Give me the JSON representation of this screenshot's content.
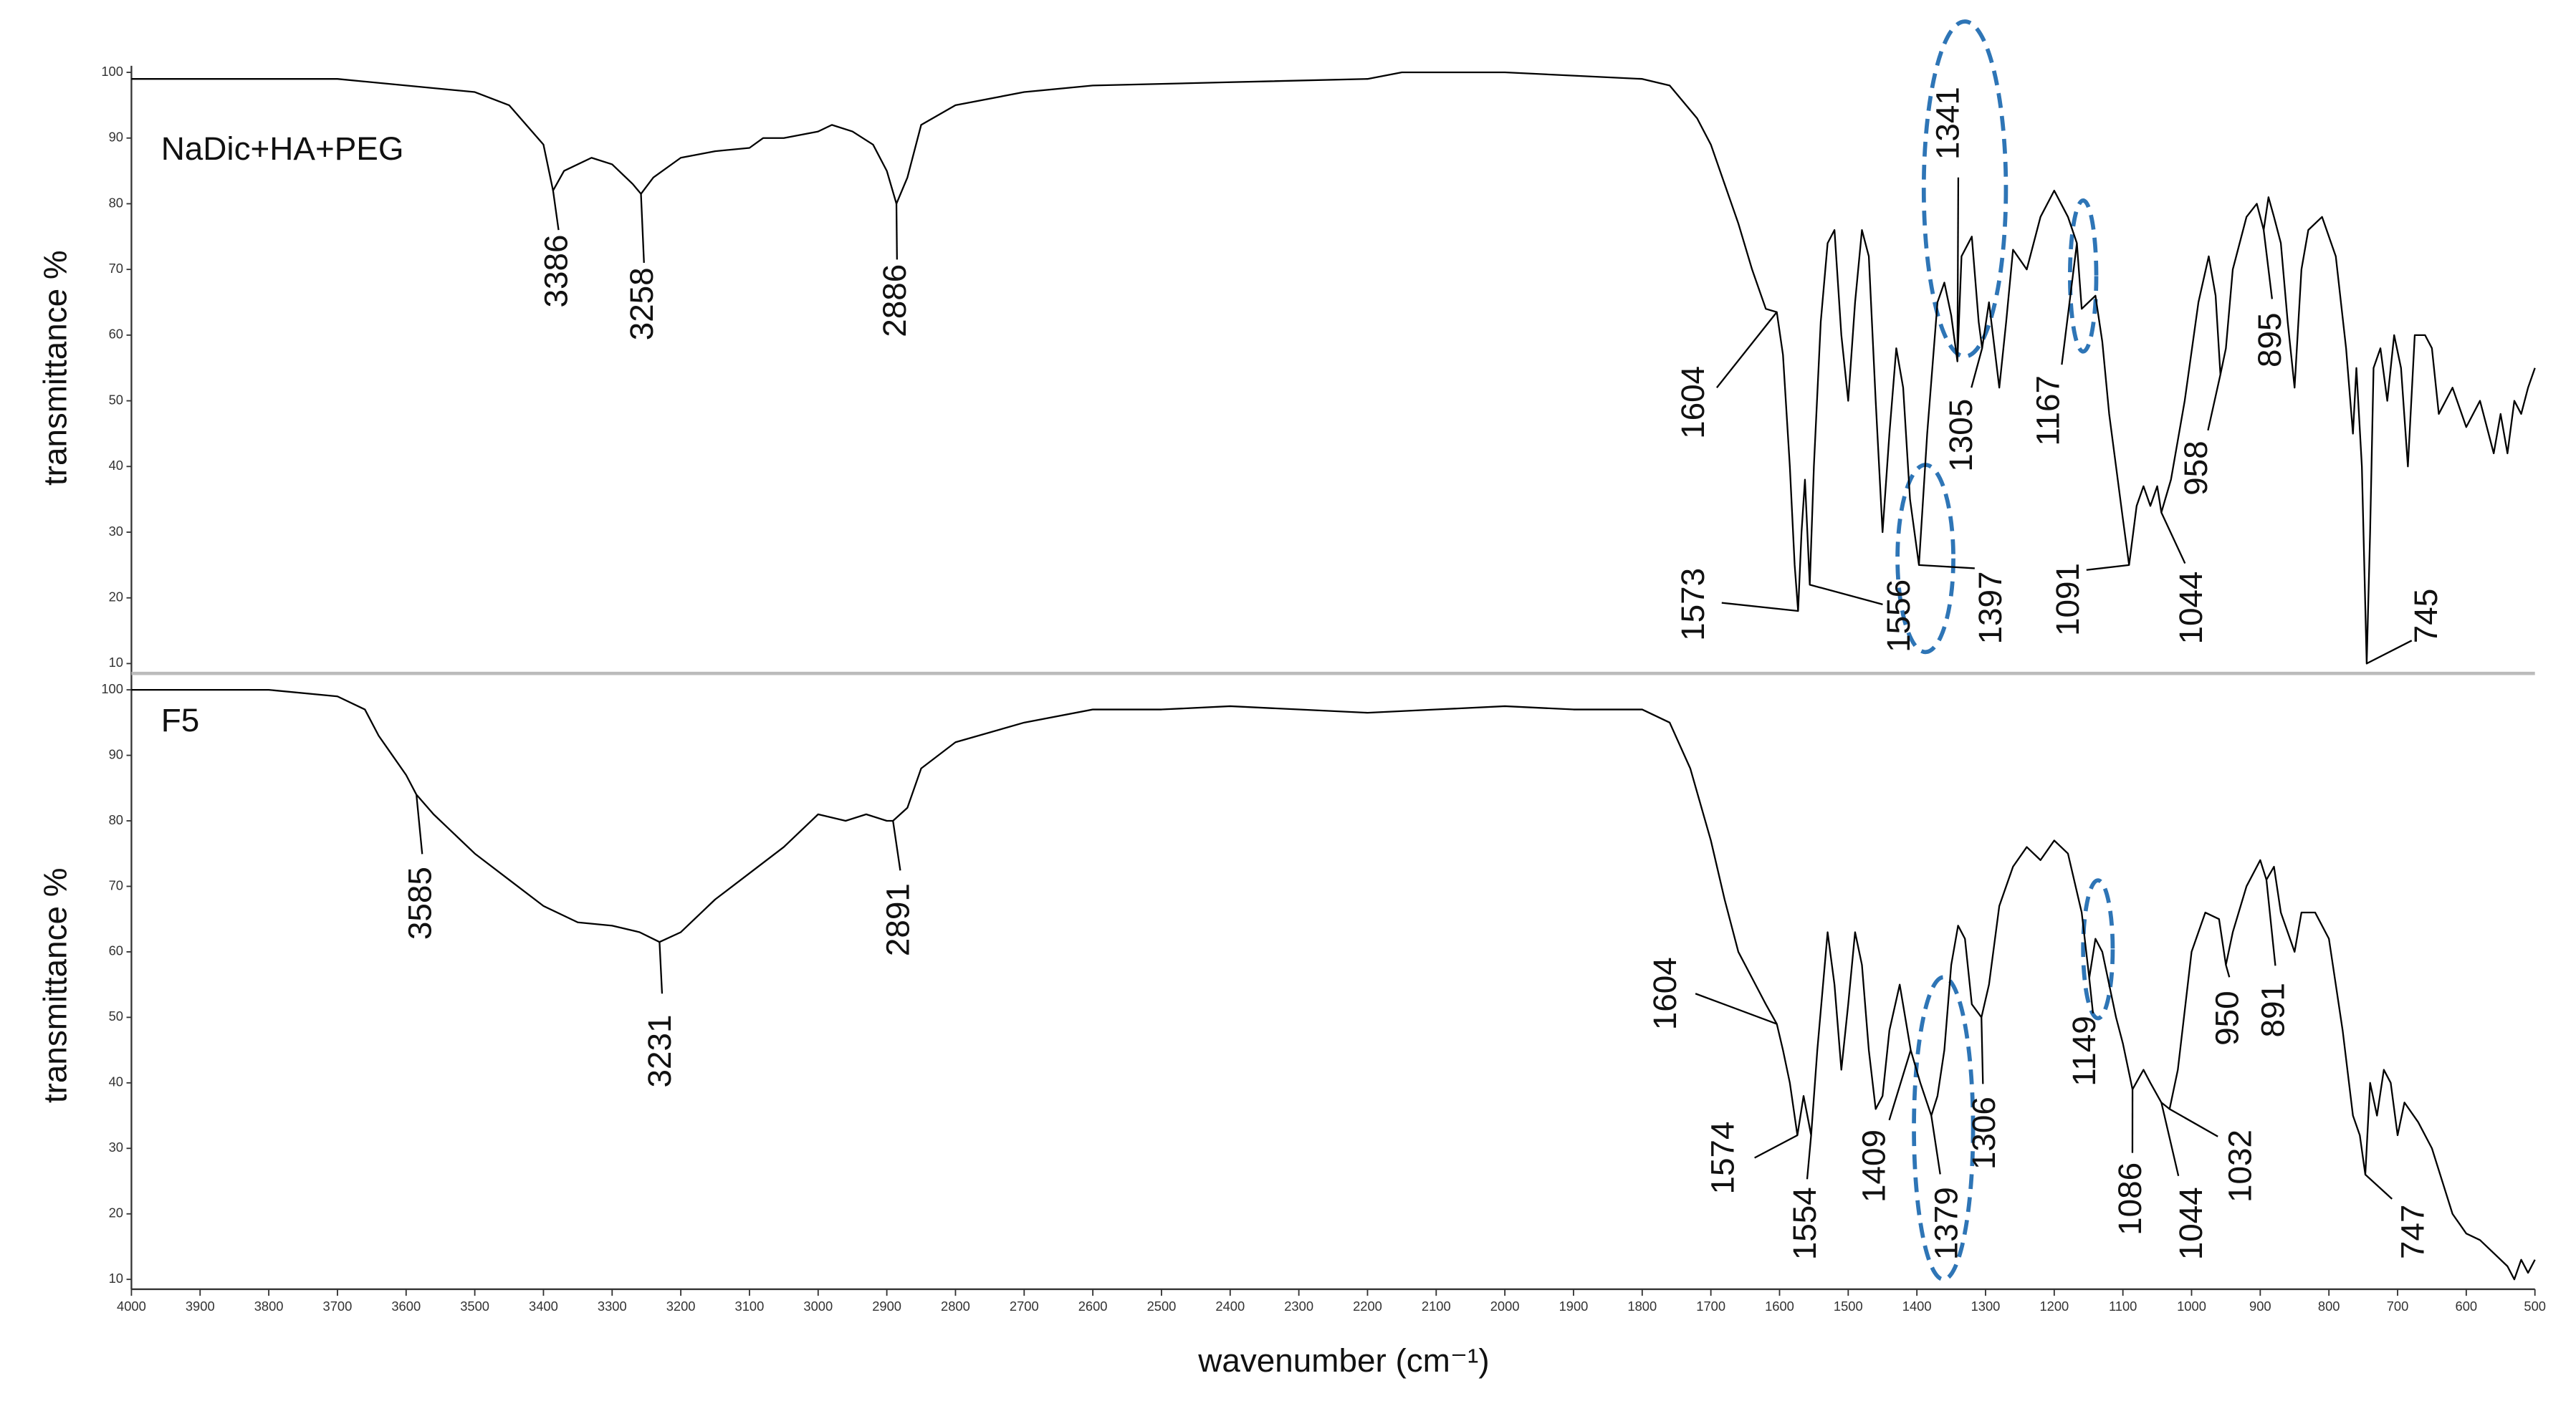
{
  "chart_data": [
    {
      "type": "line",
      "title": "NaDic+HA+PEG",
      "y_label": "transmittance %",
      "color": "#000000",
      "xlim": [
        4000,
        500
      ],
      "ylim": [
        10,
        100
      ],
      "yticks": [
        10,
        20,
        30,
        40,
        50,
        60,
        70,
        80,
        90,
        100
      ],
      "x": [
        4000,
        3800,
        3700,
        3600,
        3500,
        3450,
        3400,
        3386,
        3370,
        3330,
        3300,
        3270,
        3258,
        3240,
        3200,
        3150,
        3100,
        3080,
        3050,
        3000,
        2980,
        2950,
        2920,
        2900,
        2886,
        2870,
        2850,
        2800,
        2700,
        2600,
        2400,
        2200,
        2150,
        2000,
        1900,
        1800,
        1760,
        1720,
        1700,
        1680,
        1660,
        1640,
        1620,
        1604,
        1595,
        1585,
        1578,
        1573,
        1568,
        1563,
        1556,
        1550,
        1540,
        1530,
        1520,
        1510,
        1500,
        1490,
        1480,
        1470,
        1460,
        1450,
        1440,
        1430,
        1420,
        1410,
        1397,
        1385,
        1370,
        1360,
        1350,
        1341,
        1335,
        1320,
        1310,
        1305,
        1295,
        1280,
        1270,
        1260,
        1240,
        1220,
        1200,
        1180,
        1167,
        1160,
        1150,
        1140,
        1130,
        1120,
        1110,
        1100,
        1091,
        1080,
        1070,
        1060,
        1050,
        1044,
        1030,
        1010,
        990,
        975,
        965,
        958,
        950,
        940,
        920,
        905,
        895,
        888,
        880,
        870,
        860,
        850,
        840,
        830,
        810,
        790,
        775,
        765,
        760,
        752,
        745,
        740,
        735,
        725,
        715,
        705,
        695,
        685,
        675,
        660,
        650,
        640,
        620,
        600,
        580,
        560,
        550,
        540,
        530,
        520,
        510,
        500
      ],
      "values": [
        99,
        99,
        99,
        98,
        97,
        95,
        89,
        82,
        85,
        87,
        86,
        83,
        81.5,
        84,
        87,
        88,
        88.5,
        90,
        90,
        91,
        92,
        91,
        89,
        85,
        80,
        84,
        92,
        95,
        97,
        98,
        98.5,
        99,
        100,
        100,
        99.5,
        99,
        98,
        93,
        89,
        83,
        77,
        70,
        64,
        63.5,
        57,
        40,
        25,
        18,
        30,
        38,
        22,
        40,
        62,
        74,
        76,
        60,
        50,
        65,
        76,
        72,
        50,
        30,
        45,
        58,
        52,
        35,
        25,
        45,
        65,
        68,
        63,
        56,
        72,
        75,
        62,
        58,
        65,
        52,
        62,
        73,
        70,
        78,
        82,
        78,
        74,
        64,
        65,
        66,
        59,
        48,
        40,
        32,
        25,
        34,
        37,
        34,
        37,
        33,
        38,
        50,
        65,
        72,
        66,
        54,
        58,
        70,
        78,
        80,
        76,
        81,
        78,
        74,
        62,
        52,
        70,
        76,
        78,
        72,
        58,
        45,
        55,
        40,
        10,
        30,
        55,
        58,
        50,
        60,
        55,
        40,
        60,
        60,
        58,
        48,
        52,
        46,
        50,
        42,
        48,
        42,
        50,
        48,
        52,
        55
      ],
      "peaks": [
        3386,
        3258,
        2886,
        1604,
        1573,
        1556,
        1397,
        1341,
        1305,
        1167,
        1091,
        1044,
        958,
        895,
        745
      ]
    },
    {
      "type": "line",
      "title": "F5",
      "y_label": "transmittance %",
      "x_label": "wavenumber (cm⁻¹)",
      "color": "#000000",
      "xlim": [
        4000,
        500
      ],
      "ylim": [
        10,
        100
      ],
      "yticks": [
        10,
        20,
        30,
        40,
        50,
        60,
        70,
        80,
        90,
        100
      ],
      "xticks": [
        4000,
        3900,
        3800,
        3700,
        3600,
        3500,
        3400,
        3300,
        3200,
        3100,
        3000,
        2900,
        2800,
        2700,
        2600,
        2500,
        2400,
        2300,
        2200,
        2100,
        2000,
        1900,
        1800,
        1700,
        1600,
        1500,
        1400,
        1300,
        1200,
        1100,
        1000,
        900,
        800,
        700,
        600,
        500
      ],
      "x": [
        4000,
        3800,
        3700,
        3660,
        3640,
        3620,
        3600,
        3585,
        3560,
        3500,
        3450,
        3400,
        3350,
        3300,
        3260,
        3231,
        3200,
        3150,
        3100,
        3050,
        3000,
        2960,
        2930,
        2900,
        2891,
        2870,
        2850,
        2800,
        2700,
        2600,
        2500,
        2400,
        2300,
        2200,
        2100,
        2000,
        1900,
        1800,
        1760,
        1730,
        1700,
        1680,
        1660,
        1640,
        1620,
        1604,
        1595,
        1585,
        1574,
        1565,
        1554,
        1545,
        1530,
        1520,
        1510,
        1500,
        1490,
        1480,
        1470,
        1460,
        1450,
        1440,
        1425,
        1409,
        1395,
        1379,
        1370,
        1360,
        1350,
        1340,
        1330,
        1320,
        1306,
        1295,
        1280,
        1260,
        1240,
        1220,
        1200,
        1180,
        1160,
        1149,
        1140,
        1130,
        1110,
        1100,
        1086,
        1070,
        1060,
        1044,
        1032,
        1020,
        1000,
        980,
        960,
        950,
        940,
        920,
        900,
        891,
        880,
        870,
        860,
        850,
        840,
        820,
        800,
        780,
        765,
        755,
        747,
        740,
        730,
        720,
        710,
        700,
        690,
        670,
        650,
        620,
        600,
        580,
        560,
        540,
        530,
        520,
        510,
        500
      ],
      "values": [
        100,
        100,
        99,
        97,
        93,
        90,
        87,
        84,
        81,
        75,
        71,
        67,
        64.5,
        64,
        63,
        61.5,
        63,
        68,
        72,
        76,
        81,
        80,
        81,
        80,
        80,
        82,
        88,
        92,
        95,
        97,
        97,
        97.5,
        97,
        96.5,
        97,
        97.5,
        97,
        97,
        95,
        88,
        77,
        68,
        60,
        56,
        52,
        49,
        45,
        40,
        32,
        38,
        32,
        45,
        63,
        55,
        42,
        52,
        63,
        58,
        45,
        36,
        38,
        48,
        55,
        45,
        40,
        35,
        38,
        45,
        58,
        64,
        62,
        52,
        50,
        55,
        67,
        73,
        76,
        74,
        77,
        75,
        66,
        56,
        62,
        60,
        50,
        46,
        39,
        42,
        40,
        37,
        36,
        42,
        60,
        66,
        65,
        58,
        63,
        70,
        74,
        71,
        73,
        66,
        63,
        60,
        66,
        66,
        62,
        48,
        35,
        32,
        26,
        40,
        35,
        42,
        40,
        32,
        37,
        34,
        30,
        20,
        17,
        16,
        14,
        12,
        10,
        13,
        11,
        13
      ],
      "peaks": [
        3585,
        3231,
        2891,
        1604,
        1574,
        1554,
        1409,
        1379,
        1306,
        1149,
        1086,
        1044,
        1032,
        950,
        891,
        747
      ]
    }
  ]
}
